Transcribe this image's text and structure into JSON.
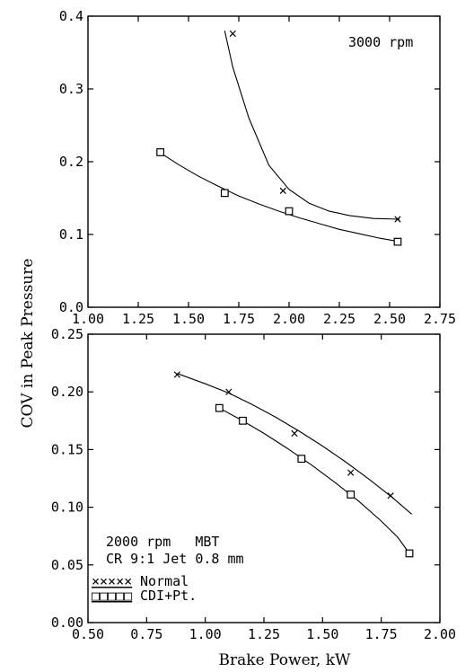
{
  "ylabel": "COV in Peak Pressure",
  "xlabel": "Brake Power, kW",
  "chart_data": [
    {
      "type": "scatter",
      "annotation_lines": [
        "3000 rpm"
      ],
      "xlim": [
        1.0,
        2.75
      ],
      "ylim": [
        0.0,
        0.4
      ],
      "xticks": [
        "1.00",
        "1.25",
        "1.50",
        "1.75",
        "2.00",
        "2.25",
        "2.50",
        "2.75"
      ],
      "yticks": [
        "0.0",
        "0.1",
        "0.2",
        "0.3",
        "0.4"
      ],
      "series": [
        {
          "name": "Normal",
          "marker": "x",
          "x": [
            1.72,
            1.97,
            2.54
          ],
          "y": [
            0.376,
            0.16,
            0.121
          ],
          "fit": [
            [
              1.68,
              0.38
            ],
            [
              1.72,
              0.33
            ],
            [
              1.8,
              0.26
            ],
            [
              1.9,
              0.195
            ],
            [
              2.0,
              0.162
            ],
            [
              2.1,
              0.143
            ],
            [
              2.2,
              0.132
            ],
            [
              2.3,
              0.126
            ],
            [
              2.42,
              0.122
            ],
            [
              2.55,
              0.121
            ]
          ]
        },
        {
          "name": "CDI+Pt.",
          "marker": "square",
          "x": [
            1.36,
            1.68,
            2.0,
            2.54
          ],
          "y": [
            0.213,
            0.157,
            0.132,
            0.09
          ],
          "fit": [
            [
              1.35,
              0.214
            ],
            [
              1.45,
              0.196
            ],
            [
              1.55,
              0.18
            ],
            [
              1.65,
              0.166
            ],
            [
              1.75,
              0.153
            ],
            [
              1.85,
              0.142
            ],
            [
              1.95,
              0.132
            ],
            [
              2.05,
              0.123
            ],
            [
              2.15,
              0.115
            ],
            [
              2.25,
              0.107
            ],
            [
              2.35,
              0.101
            ],
            [
              2.45,
              0.095
            ],
            [
              2.55,
              0.09
            ]
          ]
        }
      ]
    },
    {
      "type": "scatter",
      "annotation_lines": [
        "2000 rpm   MBT",
        "CR 9:1 Jet 0.8 mm"
      ],
      "xlim": [
        0.5,
        2.0
      ],
      "ylim": [
        0.0,
        0.25
      ],
      "xticks": [
        "0.50",
        "0.75",
        "1.00",
        "1.25",
        "1.50",
        "1.75",
        "2.00"
      ],
      "yticks": [
        "0.00",
        "0.05",
        "0.10",
        "0.15",
        "0.20",
        "0.25"
      ],
      "legend": {
        "position": "bottom-left",
        "entries": [
          {
            "symbol": "×××××",
            "label": "Normal"
          },
          {
            "symbol": "□□□□□",
            "label": "CDI+Pt."
          }
        ]
      },
      "series": [
        {
          "name": "Normal",
          "marker": "x",
          "x": [
            0.88,
            1.1,
            1.38,
            1.62,
            1.79
          ],
          "y": [
            0.215,
            0.2,
            0.164,
            0.13,
            0.11
          ],
          "fit": [
            [
              0.88,
              0.216
            ],
            [
              1.0,
              0.207
            ],
            [
              1.1,
              0.199
            ],
            [
              1.2,
              0.189
            ],
            [
              1.3,
              0.178
            ],
            [
              1.4,
              0.166
            ],
            [
              1.5,
              0.153
            ],
            [
              1.6,
              0.139
            ],
            [
              1.7,
              0.124
            ],
            [
              1.8,
              0.108
            ],
            [
              1.88,
              0.094
            ]
          ]
        },
        {
          "name": "CDI+Pt.",
          "marker": "square",
          "x": [
            1.06,
            1.16,
            1.41,
            1.62,
            1.87
          ],
          "y": [
            0.186,
            0.175,
            0.142,
            0.111,
            0.06
          ],
          "fit": [
            [
              1.06,
              0.186
            ],
            [
              1.15,
              0.176
            ],
            [
              1.25,
              0.164
            ],
            [
              1.35,
              0.151
            ],
            [
              1.45,
              0.137
            ],
            [
              1.55,
              0.122
            ],
            [
              1.65,
              0.106
            ],
            [
              1.75,
              0.088
            ],
            [
              1.82,
              0.074
            ],
            [
              1.87,
              0.06
            ]
          ]
        }
      ]
    }
  ]
}
